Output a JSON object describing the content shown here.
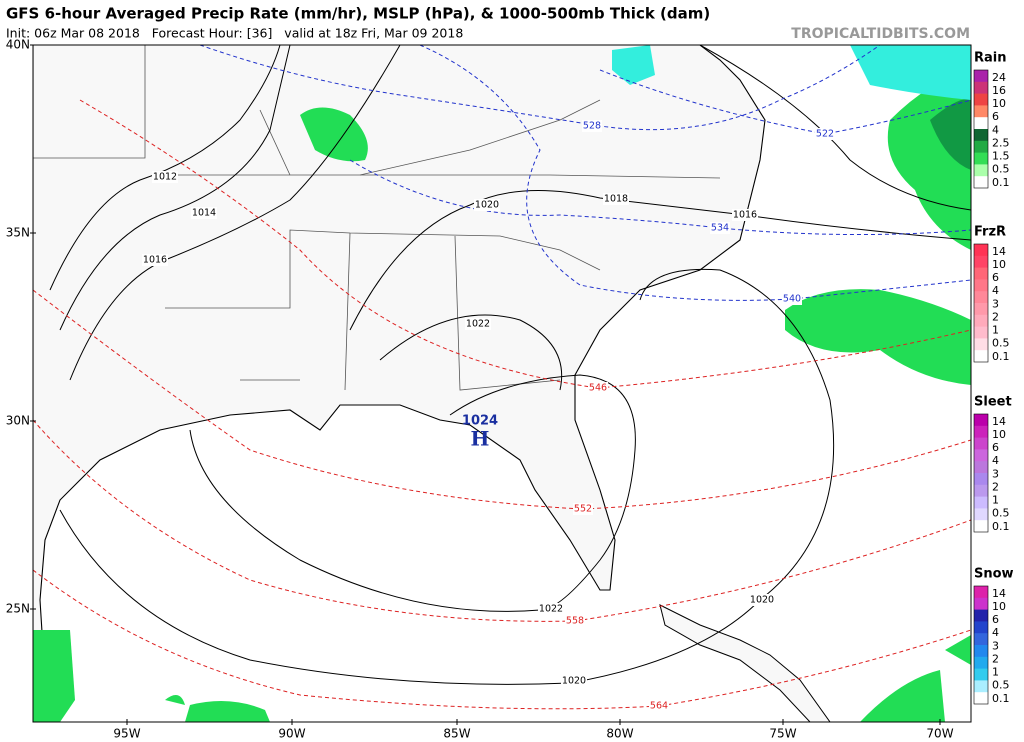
{
  "header": {
    "title": "GFS 6-hour Averaged Precip Rate (mm/hr), MSLP (hPa), & 1000-500mb Thick (dam)",
    "init": "Init: 06z Mar 08 2018   Forecast Hour: [36]   valid at 18z Fri, Mar 09 2018",
    "site": "TROPICALTIDBITS.COM"
  },
  "map": {
    "lat_labels": [
      "40N",
      "35N",
      "30N",
      "25N"
    ],
    "lon_labels": [
      "95W",
      "90W",
      "85W",
      "80W",
      "75W",
      "70W"
    ],
    "isobar_labels": [
      "1012",
      "1014",
      "1016",
      "1020",
      "1018",
      "1016",
      "1022",
      "1022",
      "1020",
      "1020"
    ],
    "high": {
      "value": "1024",
      "symbol": "H"
    },
    "thickness_labels": [
      "528",
      "522",
      "534",
      "540",
      "546",
      "552",
      "558",
      "564"
    ]
  },
  "legend": [
    {
      "title": "Rain",
      "labels": [
        "24",
        "16",
        "10",
        "6",
        "4",
        "2.5",
        "1.5",
        "0.5",
        "0.1"
      ]
    },
    {
      "title": "FrzR",
      "labels": [
        "14",
        "10",
        "6",
        "4",
        "3",
        "2",
        "1",
        "0.5",
        "0.1"
      ]
    },
    {
      "title": "Sleet",
      "labels": [
        "14",
        "10",
        "6",
        "4",
        "3",
        "2",
        "1",
        "0.5",
        "0.1"
      ]
    },
    {
      "title": "Snow",
      "labels": [
        "14",
        "10",
        "6",
        "4",
        "3",
        "2",
        "1",
        "0.5",
        "0.1"
      ]
    }
  ]
}
